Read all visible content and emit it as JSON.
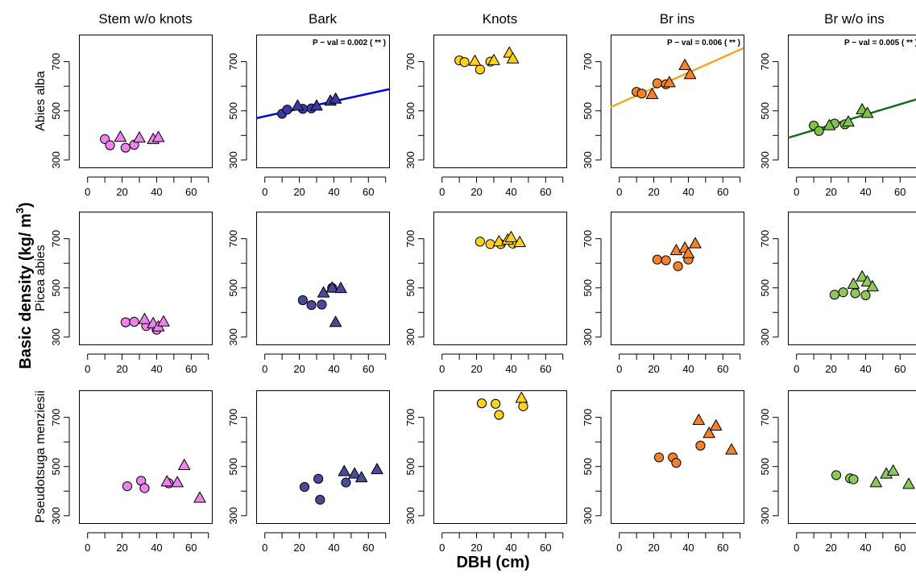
{
  "figure": {
    "xlabel": "DBH (cm)",
    "ylabel_main": "Basic density (kg/ m",
    "ylabel_sup": "3",
    "ylabel_close": ")"
  },
  "chart_data": {
    "type": "scatter",
    "xlim": [
      -5,
      72
    ],
    "ylim": [
      270,
      810
    ],
    "xticks": [
      0,
      20,
      40,
      60
    ],
    "xticks_minor": [
      10,
      30,
      50,
      70
    ],
    "yticks": [
      300,
      500,
      700
    ],
    "yticks_minor": [
      400,
      600
    ],
    "columns": [
      "Stem w/o knots",
      "Bark",
      "Knots",
      "Br ins",
      "Br w/o ins"
    ],
    "rows": [
      "Abies alba",
      "Picea abies",
      "Pseudotsuga menziesii"
    ],
    "colors": {
      "Stem w/o knots": [
        "#ee82ee",
        "#ee82ee",
        "#ee82ee"
      ],
      "Bark": [
        "#3a3aa3",
        "#4a4a9a",
        "#4a4a9a"
      ],
      "Knots": [
        "#ffd21e",
        "#ffd21e",
        "#ffd21e"
      ],
      "Br ins": [
        "#f5822a",
        "#f5822a",
        "#f5822a"
      ],
      "Br w/o ins": [
        "#7fc24a",
        "#8cc85a",
        "#8cc85a"
      ]
    },
    "regression_colors": {
      "Bark": "#0000dd",
      "Br ins": "#f5a623",
      "Br w/o ins": "#1a6b1a"
    },
    "panels": [
      {
        "column": "Stem w/o knots",
        "row": "Abies alba",
        "circles": [
          {
            "x": 10,
            "y": 385
          },
          {
            "x": 13,
            "y": 360
          },
          {
            "x": 22,
            "y": 350
          },
          {
            "x": 27,
            "y": 362
          }
        ],
        "triangles": [
          {
            "x": 19,
            "y": 393
          },
          {
            "x": 30,
            "y": 390
          },
          {
            "x": 38,
            "y": 384
          },
          {
            "x": 41,
            "y": 392
          }
        ]
      },
      {
        "column": "Bark",
        "row": "Abies alba",
        "circles": [
          {
            "x": 10,
            "y": 488
          },
          {
            "x": 13,
            "y": 505
          },
          {
            "x": 22,
            "y": 508
          },
          {
            "x": 27,
            "y": 510
          }
        ],
        "triangles": [
          {
            "x": 19,
            "y": 520
          },
          {
            "x": 30,
            "y": 520
          },
          {
            "x": 38,
            "y": 540
          },
          {
            "x": 41,
            "y": 548
          }
        ],
        "regression": {
          "x1": -5,
          "y1": 470,
          "x2": 72,
          "y2": 588,
          "label": "P − val = 0.002 ( ** )"
        }
      },
      {
        "column": "Knots",
        "row": "Abies alba",
        "circles": [
          {
            "x": 10,
            "y": 705
          },
          {
            "x": 13,
            "y": 698
          },
          {
            "x": 22,
            "y": 668
          },
          {
            "x": 28,
            "y": 700
          }
        ],
        "triangles": [
          {
            "x": 19,
            "y": 702
          },
          {
            "x": 30,
            "y": 705
          },
          {
            "x": 39,
            "y": 735
          },
          {
            "x": 41,
            "y": 712
          }
        ]
      },
      {
        "column": "Br ins",
        "row": "Abies alba",
        "circles": [
          {
            "x": 10,
            "y": 577
          },
          {
            "x": 13,
            "y": 570
          },
          {
            "x": 22,
            "y": 612
          },
          {
            "x": 27,
            "y": 608
          }
        ],
        "triangles": [
          {
            "x": 19,
            "y": 567
          },
          {
            "x": 29,
            "y": 615
          },
          {
            "x": 38,
            "y": 685
          },
          {
            "x": 41,
            "y": 648
          }
        ],
        "regression": {
          "x1": -5,
          "y1": 515,
          "x2": 72,
          "y2": 755,
          "label": "P − val = 0.006 ( ** )"
        }
      },
      {
        "column": "Br w/o ins",
        "row": "Abies alba",
        "circles": [
          {
            "x": 10,
            "y": 440
          },
          {
            "x": 13,
            "y": 418
          },
          {
            "x": 22,
            "y": 448
          },
          {
            "x": 28,
            "y": 445
          }
        ],
        "triangles": [
          {
            "x": 19,
            "y": 440
          },
          {
            "x": 30,
            "y": 455
          },
          {
            "x": 38,
            "y": 505
          },
          {
            "x": 41,
            "y": 490
          }
        ],
        "regression": {
          "x1": -5,
          "y1": 390,
          "x2": 72,
          "y2": 552,
          "label": "P − val = 0.005 ( ** )"
        }
      },
      {
        "column": "Stem w/o knots",
        "row": "Picea abies",
        "circles": [
          {
            "x": 22,
            "y": 360
          },
          {
            "x": 27,
            "y": 362
          },
          {
            "x": 34,
            "y": 345
          },
          {
            "x": 40,
            "y": 330
          }
        ],
        "triangles": [
          {
            "x": 33,
            "y": 372
          },
          {
            "x": 38,
            "y": 355
          },
          {
            "x": 41,
            "y": 342
          },
          {
            "x": 44,
            "y": 362
          }
        ]
      },
      {
        "column": "Bark",
        "row": "Picea abies",
        "circles": [
          {
            "x": 22,
            "y": 450
          },
          {
            "x": 27,
            "y": 430
          },
          {
            "x": 33,
            "y": 432
          },
          {
            "x": 39,
            "y": 500
          }
        ],
        "triangles": [
          {
            "x": 34,
            "y": 480
          },
          {
            "x": 39,
            "y": 500
          },
          {
            "x": 41,
            "y": 360
          },
          {
            "x": 44,
            "y": 498
          }
        ]
      },
      {
        "column": "Knots",
        "row": "Picea abies",
        "circles": [
          {
            "x": 22,
            "y": 688
          },
          {
            "x": 28,
            "y": 678
          },
          {
            "x": 34,
            "y": 678
          },
          {
            "x": 41,
            "y": 680
          }
        ],
        "triangles": [
          {
            "x": 33,
            "y": 688
          },
          {
            "x": 38,
            "y": 695
          },
          {
            "x": 40,
            "y": 705
          },
          {
            "x": 45,
            "y": 685
          }
        ]
      },
      {
        "column": "Br ins",
        "row": "Picea abies",
        "circles": [
          {
            "x": 22,
            "y": 615
          },
          {
            "x": 27,
            "y": 612
          },
          {
            "x": 34,
            "y": 588
          },
          {
            "x": 40,
            "y": 615
          }
        ],
        "triangles": [
          {
            "x": 33,
            "y": 652
          },
          {
            "x": 38,
            "y": 662
          },
          {
            "x": 40,
            "y": 640
          },
          {
            "x": 44,
            "y": 680
          }
        ]
      },
      {
        "column": "Br w/o ins",
        "row": "Picea abies",
        "circles": [
          {
            "x": 22,
            "y": 472
          },
          {
            "x": 27,
            "y": 482
          },
          {
            "x": 34,
            "y": 478
          },
          {
            "x": 40,
            "y": 470
          }
        ],
        "triangles": [
          {
            "x": 33,
            "y": 515
          },
          {
            "x": 38,
            "y": 545
          },
          {
            "x": 41,
            "y": 525
          },
          {
            "x": 44,
            "y": 505
          }
        ]
      },
      {
        "column": "Stem w/o knots",
        "row": "Pseudotsuga menziesii",
        "circles": [
          {
            "x": 23,
            "y": 420
          },
          {
            "x": 31,
            "y": 442
          },
          {
            "x": 33,
            "y": 412
          },
          {
            "x": 47,
            "y": 432
          }
        ],
        "triangles": [
          {
            "x": 46,
            "y": 438
          },
          {
            "x": 52,
            "y": 435
          },
          {
            "x": 56,
            "y": 505
          },
          {
            "x": 65,
            "y": 372
          }
        ]
      },
      {
        "column": "Bark",
        "row": "Pseudotsuga menziesii",
        "circles": [
          {
            "x": 23,
            "y": 417
          },
          {
            "x": 31,
            "y": 450
          },
          {
            "x": 32,
            "y": 365
          },
          {
            "x": 47,
            "y": 435
          }
        ],
        "triangles": [
          {
            "x": 46,
            "y": 480
          },
          {
            "x": 52,
            "y": 470
          },
          {
            "x": 56,
            "y": 455
          },
          {
            "x": 65,
            "y": 488
          }
        ]
      },
      {
        "column": "Knots",
        "row": "Pseudotsuga menziesii",
        "circles": [
          {
            "x": 23,
            "y": 757
          },
          {
            "x": 31,
            "y": 755
          },
          {
            "x": 33,
            "y": 710
          },
          {
            "x": 47,
            "y": 745
          }
        ],
        "triangles": [
          {
            "x": 46,
            "y": 778
          }
        ]
      },
      {
        "column": "Br ins",
        "row": "Pseudotsuga menziesii",
        "circles": [
          {
            "x": 23,
            "y": 537
          },
          {
            "x": 31,
            "y": 537
          },
          {
            "x": 33,
            "y": 515
          },
          {
            "x": 47,
            "y": 585
          }
        ],
        "triangles": [
          {
            "x": 46,
            "y": 688
          },
          {
            "x": 52,
            "y": 635
          },
          {
            "x": 56,
            "y": 665
          },
          {
            "x": 65,
            "y": 568
          }
        ]
      },
      {
        "column": "Br w/o ins",
        "row": "Pseudotsuga menziesii",
        "circles": [
          {
            "x": 23,
            "y": 465
          },
          {
            "x": 31,
            "y": 452
          },
          {
            "x": 33,
            "y": 448
          }
        ],
        "triangles": [
          {
            "x": 46,
            "y": 435
          },
          {
            "x": 52,
            "y": 470
          },
          {
            "x": 56,
            "y": 482
          },
          {
            "x": 65,
            "y": 428
          }
        ]
      }
    ]
  }
}
